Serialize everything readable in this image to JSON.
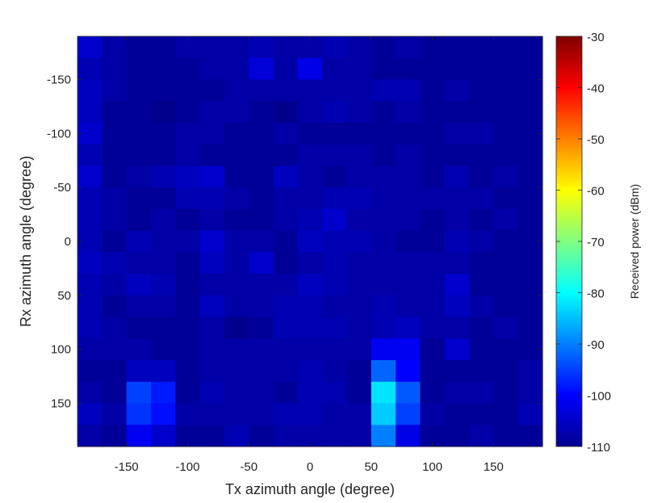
{
  "chart_data": {
    "type": "heatmap",
    "xlabel": "Tx azimuth angle (degree)",
    "ylabel": "Rx azimuth angle (degree)",
    "colorbar_label": "Received power (dBm)",
    "colormap": "jet",
    "clim": [
      -110,
      -30
    ],
    "colorbar_ticks": [
      "-30",
      "-40",
      "-50",
      "-60",
      "-70",
      "-80",
      "-90",
      "-100",
      "-110"
    ],
    "x_ticks": [
      "-150",
      "-100",
      "-50",
      "0",
      "50",
      "100",
      "150"
    ],
    "y_ticks": [
      "-150",
      "-100",
      "-50",
      "0",
      "50",
      "100",
      "150"
    ],
    "xlim": [
      -190,
      190
    ],
    "ylim": [
      -190,
      190
    ],
    "y_axis_direction": "reversed",
    "x_centers": [
      -180,
      -160,
      -140,
      -120,
      -100,
      -80,
      -60,
      -40,
      -20,
      0,
      20,
      40,
      60,
      80,
      100,
      120,
      140,
      160,
      180
    ],
    "y_centers": [
      -180,
      -160,
      -140,
      -120,
      -100,
      -80,
      -60,
      -40,
      -20,
      0,
      20,
      40,
      60,
      80,
      100,
      120,
      140,
      160,
      180
    ],
    "values": [
      [
        -104,
        -107,
        -108,
        -108,
        -107,
        -107,
        -107,
        -106,
        -107,
        -107,
        -106,
        -107,
        -108,
        -107,
        -108,
        -108,
        -108,
        -108,
        -108
      ],
      [
        -106,
        -107,
        -108,
        -108,
        -108,
        -107,
        -107,
        -103,
        -107,
        -102,
        -107,
        -107,
        -108,
        -108,
        -108,
        -108,
        -108,
        -108,
        -108
      ],
      [
        -105,
        -107,
        -108,
        -108,
        -108,
        -108,
        -107,
        -107,
        -107,
        -107,
        -107,
        -107,
        -106,
        -106,
        -108,
        -107,
        -108,
        -108,
        -108
      ],
      [
        -105,
        -108,
        -108,
        -109,
        -108,
        -107,
        -107,
        -108,
        -109,
        -107,
        -106,
        -107,
        -108,
        -107,
        -108,
        -108,
        -108,
        -108,
        -108
      ],
      [
        -104,
        -108,
        -108,
        -108,
        -107,
        -107,
        -108,
        -108,
        -107,
        -108,
        -108,
        -108,
        -108,
        -108,
        -108,
        -107,
        -107,
        -108,
        -108
      ],
      [
        -106,
        -108,
        -108,
        -108,
        -107,
        -108,
        -108,
        -108,
        -108,
        -107,
        -107,
        -107,
        -108,
        -107,
        -108,
        -108,
        -108,
        -108,
        -108
      ],
      [
        -104,
        -108,
        -107,
        -106,
        -105,
        -104,
        -108,
        -108,
        -105,
        -107,
        -108,
        -107,
        -107,
        -107,
        -108,
        -106,
        -108,
        -107,
        -108
      ],
      [
        -106,
        -107,
        -108,
        -108,
        -106,
        -106,
        -107,
        -108,
        -107,
        -107,
        -106,
        -106,
        -107,
        -107,
        -107,
        -107,
        -107,
        -108,
        -108
      ],
      [
        -106,
        -107,
        -108,
        -107,
        -108,
        -107,
        -108,
        -108,
        -107,
        -106,
        -104,
        -107,
        -107,
        -107,
        -108,
        -107,
        -108,
        -107,
        -108
      ],
      [
        -106,
        -108,
        -106,
        -107,
        -107,
        -104,
        -107,
        -107,
        -108,
        -105,
        -106,
        -106,
        -107,
        -108,
        -108,
        -106,
        -107,
        -108,
        -108
      ],
      [
        -105,
        -106,
        -107,
        -107,
        -108,
        -105,
        -107,
        -104,
        -108,
        -107,
        -106,
        -107,
        -107,
        -107,
        -107,
        -107,
        -108,
        -108,
        -108
      ],
      [
        -106,
        -107,
        -105,
        -106,
        -108,
        -107,
        -107,
        -107,
        -107,
        -105,
        -106,
        -107,
        -107,
        -107,
        -107,
        -104,
        -108,
        -108,
        -108
      ],
      [
        -106,
        -108,
        -107,
        -107,
        -108,
        -105,
        -107,
        -107,
        -106,
        -106,
        -107,
        -107,
        -106,
        -107,
        -107,
        -105,
        -107,
        -108,
        -108
      ],
      [
        -106,
        -107,
        -108,
        -108,
        -108,
        -107,
        -109,
        -108,
        -106,
        -106,
        -106,
        -107,
        -106,
        -105,
        -107,
        -107,
        -108,
        -107,
        -108
      ],
      [
        -107,
        -107,
        -107,
        -108,
        -108,
        -107,
        -107,
        -107,
        -107,
        -107,
        -107,
        -107,
        -101,
        -101,
        -108,
        -104,
        -108,
        -108,
        -108
      ],
      [
        -108,
        -108,
        -105,
        -105,
        -108,
        -107,
        -107,
        -107,
        -107,
        -106,
        -107,
        -108,
        -92,
        -100,
        -108,
        -108,
        -108,
        -108,
        -107
      ],
      [
        -107,
        -108,
        -95,
        -98,
        -108,
        -106,
        -107,
        -107,
        -108,
        -106,
        -106,
        -108,
        -82,
        -93,
        -108,
        -107,
        -107,
        -108,
        -107
      ],
      [
        -105,
        -107,
        -96,
        -99,
        -107,
        -107,
        -107,
        -107,
        -106,
        -106,
        -107,
        -107,
        -84,
        -95,
        -107,
        -108,
        -108,
        -108,
        -106
      ],
      [
        -107,
        -108,
        -101,
        -104,
        -108,
        -108,
        -106,
        -108,
        -107,
        -107,
        -107,
        -107,
        -90,
        -102,
        -108,
        -108,
        -107,
        -108,
        -108
      ]
    ]
  }
}
